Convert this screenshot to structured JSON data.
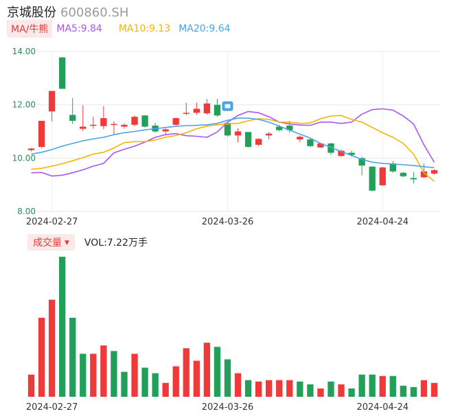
{
  "header": {
    "name": "京城股份",
    "code": "600860.SH"
  },
  "ma_legend": {
    "button": "MA/牛熊",
    "ma5": "MA5:9.84",
    "ma10": "MA10:9.13",
    "ma20": "MA20:9.64"
  },
  "volume_legend": {
    "button": "成交量",
    "text": "VOL:7.22万手"
  },
  "colors": {
    "up": "#f03a3a",
    "down": "#22a05a",
    "ma5": "#a855f7",
    "ma10": "#f5b400",
    "ma20": "#4aa3e8",
    "grid": "#e8e8e8"
  },
  "chart_data": [
    {
      "type": "candlestick",
      "ylim": [
        8.0,
        14.0
      ],
      "yticks": [
        "14.00",
        "12.00",
        "10.00",
        "8.00"
      ],
      "xtick_labels": [
        {
          "index": 2,
          "label": "2024-02-27"
        },
        {
          "index": 19,
          "label": "2024-03-26"
        },
        {
          "index": 34,
          "label": "2024-04-24"
        }
      ],
      "grid": true,
      "candles": [
        {
          "o": 10.3,
          "c": 10.36,
          "h": 10.38,
          "l": 10.25
        },
        {
          "o": 10.42,
          "c": 11.4,
          "h": 11.4,
          "l": 10.38
        },
        {
          "o": 11.75,
          "c": 12.52,
          "h": 12.52,
          "l": 11.38
        },
        {
          "o": 13.78,
          "c": 12.6,
          "h": 13.78,
          "l": 12.6
        },
        {
          "o": 11.62,
          "c": 11.4,
          "h": 12.25,
          "l": 11.28
        },
        {
          "o": 11.1,
          "c": 11.18,
          "h": 11.98,
          "l": 11.02
        },
        {
          "o": 11.22,
          "c": 11.25,
          "h": 11.55,
          "l": 11.1
        },
        {
          "o": 11.2,
          "c": 11.5,
          "h": 11.95,
          "l": 11.08
        },
        {
          "o": 11.28,
          "c": 11.28,
          "h": 11.38,
          "l": 10.9
        },
        {
          "o": 11.18,
          "c": 11.25,
          "h": 11.3,
          "l": 11.1
        },
        {
          "o": 11.25,
          "c": 11.55,
          "h": 11.6,
          "l": 11.2
        },
        {
          "o": 11.6,
          "c": 11.18,
          "h": 11.62,
          "l": 11.15
        },
        {
          "o": 11.22,
          "c": 11.0,
          "h": 11.32,
          "l": 10.95
        },
        {
          "o": 11.0,
          "c": 11.08,
          "h": 11.12,
          "l": 10.88
        },
        {
          "o": 11.25,
          "c": 11.5,
          "h": 11.52,
          "l": 11.2
        },
        {
          "o": 11.68,
          "c": 11.7,
          "h": 12.08,
          "l": 11.6
        },
        {
          "o": 11.7,
          "c": 11.85,
          "h": 12.08,
          "l": 11.62
        },
        {
          "o": 11.68,
          "c": 12.05,
          "h": 12.22,
          "l": 11.62
        },
        {
          "o": 12.0,
          "c": 11.6,
          "h": 12.22,
          "l": 11.55
        },
        {
          "o": 11.32,
          "c": 10.85,
          "h": 11.32,
          "l": 10.8
        },
        {
          "o": 10.85,
          "c": 11.0,
          "h": 11.12,
          "l": 10.6
        },
        {
          "o": 10.98,
          "c": 10.42,
          "h": 10.98,
          "l": 10.4
        },
        {
          "o": 10.5,
          "c": 10.72,
          "h": 10.75,
          "l": 10.45
        },
        {
          "o": 10.85,
          "c": 10.92,
          "h": 10.98,
          "l": 10.7
        },
        {
          "o": 11.18,
          "c": 11.05,
          "h": 11.25,
          "l": 11.0
        },
        {
          "o": 11.22,
          "c": 11.05,
          "h": 11.4,
          "l": 10.95
        },
        {
          "o": 10.7,
          "c": 10.8,
          "h": 10.85,
          "l": 10.6
        },
        {
          "o": 10.7,
          "c": 10.45,
          "h": 10.75,
          "l": 10.42
        },
        {
          "o": 10.4,
          "c": 10.55,
          "h": 10.58,
          "l": 10.38
        },
        {
          "o": 10.55,
          "c": 10.2,
          "h": 10.58,
          "l": 10.12
        },
        {
          "o": 10.08,
          "c": 10.28,
          "h": 10.32,
          "l": 10.05
        },
        {
          "o": 10.2,
          "c": 10.12,
          "h": 10.28,
          "l": 10.05
        },
        {
          "o": 10.0,
          "c": 9.72,
          "h": 10.05,
          "l": 9.35
        },
        {
          "o": 9.68,
          "c": 8.78,
          "h": 9.7,
          "l": 8.76
        },
        {
          "o": 8.98,
          "c": 9.65,
          "h": 9.68,
          "l": 8.96
        },
        {
          "o": 9.8,
          "c": 9.5,
          "h": 9.88,
          "l": 9.45
        },
        {
          "o": 9.45,
          "c": 9.32,
          "h": 9.48,
          "l": 9.28
        },
        {
          "o": 9.25,
          "c": 9.2,
          "h": 9.48,
          "l": 9.05
        },
        {
          "o": 9.28,
          "c": 9.5,
          "h": 9.8,
          "l": 9.25
        },
        {
          "o": 9.42,
          "c": 9.55,
          "h": 9.58,
          "l": 9.38
        }
      ],
      "ma5": [
        9.45,
        9.46,
        9.33,
        9.36,
        9.45,
        9.56,
        9.7,
        9.8,
        10.2,
        10.33,
        10.45,
        10.6,
        10.78,
        10.88,
        10.92,
        10.84,
        10.82,
        10.78,
        10.98,
        11.35,
        11.6,
        11.75,
        11.7,
        11.55,
        11.35,
        11.28,
        11.24,
        11.23,
        11.35,
        11.35,
        11.3,
        11.35,
        11.65,
        11.82,
        11.85,
        11.8,
        11.58,
        11.28,
        10.5,
        9.84
      ],
      "ma10": [
        9.58,
        9.62,
        9.7,
        9.79,
        9.9,
        10.02,
        10.15,
        10.22,
        10.38,
        10.58,
        10.62,
        10.62,
        10.68,
        10.78,
        10.85,
        10.95,
        11.1,
        11.2,
        11.25,
        11.28,
        11.3,
        11.4,
        11.48,
        11.45,
        11.35,
        11.35,
        11.3,
        11.32,
        11.48,
        11.58,
        11.6,
        11.45,
        11.35,
        11.15,
        10.95,
        10.78,
        10.55,
        10.15,
        9.45,
        9.13
      ],
      "ma20": [
        10.15,
        10.22,
        10.32,
        10.45,
        10.55,
        10.65,
        10.72,
        10.78,
        10.88,
        10.95,
        11.0,
        11.06,
        11.1,
        11.15,
        11.19,
        11.22,
        11.23,
        11.25,
        11.3,
        11.42,
        11.5,
        11.5,
        11.45,
        11.35,
        11.2,
        11.05,
        10.9,
        10.75,
        10.55,
        10.4,
        10.25,
        10.1,
        9.95,
        9.85,
        9.8,
        9.78,
        9.75,
        9.72,
        9.68,
        9.64
      ]
    },
    {
      "type": "bar",
      "ylim": [
        0,
        100
      ],
      "xtick_labels": [
        {
          "index": 2,
          "label": "2024-02-27"
        },
        {
          "index": 19,
          "label": "2024-03-26"
        },
        {
          "index": 34,
          "label": "2024-04-24"
        }
      ],
      "values": [
        16,
        57,
        70,
        101,
        57,
        31,
        31,
        37,
        33,
        18,
        31,
        21,
        17,
        10,
        22,
        35,
        26,
        39,
        36,
        27,
        17,
        12,
        11,
        12,
        12,
        12,
        11,
        9,
        6,
        11,
        9,
        6,
        16,
        16,
        15,
        15,
        8,
        7,
        12,
        10
      ],
      "direction": [
        "up",
        "up",
        "up",
        "down",
        "down",
        "down",
        "up",
        "up",
        "down",
        "down",
        "up",
        "down",
        "down",
        "up",
        "up",
        "up",
        "up",
        "up",
        "down",
        "down",
        "up",
        "down",
        "up",
        "up",
        "up",
        "up",
        "down",
        "down",
        "up",
        "down",
        "up",
        "down",
        "down",
        "down",
        "up",
        "down",
        "down",
        "down",
        "up",
        "up"
      ]
    }
  ]
}
